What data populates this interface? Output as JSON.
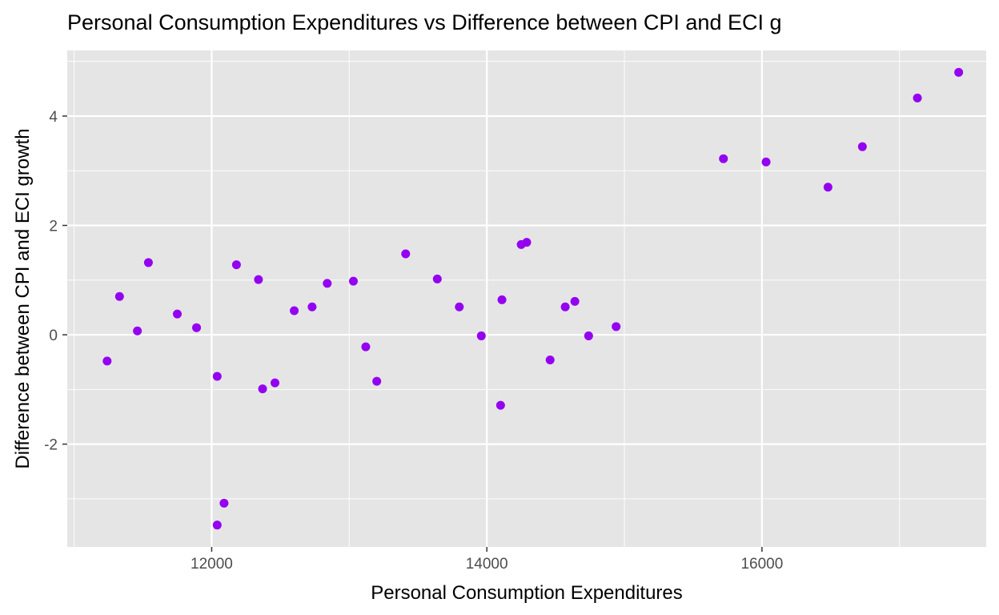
{
  "chart_data": {
    "type": "scatter",
    "title": "Personal Consumption Expenditures vs Difference between CPI and ECI g",
    "xlabel": "Personal Consumption Expenditures",
    "ylabel": "Difference between CPI and ECI growth",
    "xlim": [
      10950,
      17630
    ],
    "ylim": [
      -3.88,
      5.2
    ],
    "x_ticks": [
      12000,
      14000,
      16000
    ],
    "y_ticks": [
      -2,
      0,
      2,
      4
    ],
    "x_tick_labels": [
      "12000",
      "14000",
      "16000"
    ],
    "y_tick_labels": [
      "-2",
      "0",
      "2",
      "4"
    ],
    "grid": true,
    "legend": "none",
    "colors": {
      "panel": "#e5e5e5",
      "grid_major": "#ffffff",
      "point": "#9400f0",
      "tick_text": "#4d4d4d",
      "tick_mark": "#333333"
    },
    "points": [
      {
        "x": 11240,
        "y": -0.48
      },
      {
        "x": 11330,
        "y": 0.7
      },
      {
        "x": 11460,
        "y": 0.07
      },
      {
        "x": 11540,
        "y": 1.32
      },
      {
        "x": 11750,
        "y": 0.38
      },
      {
        "x": 11890,
        "y": 0.13
      },
      {
        "x": 12040,
        "y": -0.76
      },
      {
        "x": 12040,
        "y": -3.48
      },
      {
        "x": 12090,
        "y": -3.08
      },
      {
        "x": 12180,
        "y": 1.28
      },
      {
        "x": 12340,
        "y": 1.01
      },
      {
        "x": 12370,
        "y": -0.99
      },
      {
        "x": 12460,
        "y": -0.88
      },
      {
        "x": 12600,
        "y": 0.44
      },
      {
        "x": 12730,
        "y": 0.51
      },
      {
        "x": 12840,
        "y": 0.94
      },
      {
        "x": 13030,
        "y": 0.98
      },
      {
        "x": 13120,
        "y": -0.22
      },
      {
        "x": 13200,
        "y": -0.85
      },
      {
        "x": 13410,
        "y": 1.48
      },
      {
        "x": 13640,
        "y": 1.02
      },
      {
        "x": 13800,
        "y": 0.51
      },
      {
        "x": 13960,
        "y": -0.02
      },
      {
        "x": 14100,
        "y": -1.29
      },
      {
        "x": 14110,
        "y": 0.64
      },
      {
        "x": 14250,
        "y": 1.65
      },
      {
        "x": 14290,
        "y": 1.69
      },
      {
        "x": 14460,
        "y": -0.46
      },
      {
        "x": 14570,
        "y": 0.51
      },
      {
        "x": 14640,
        "y": 0.61
      },
      {
        "x": 14740,
        "y": -0.02
      },
      {
        "x": 14940,
        "y": 0.15
      },
      {
        "x": 15720,
        "y": 3.22
      },
      {
        "x": 16030,
        "y": 3.16
      },
      {
        "x": 16480,
        "y": 2.7
      },
      {
        "x": 16730,
        "y": 3.44
      },
      {
        "x": 17130,
        "y": 4.33
      },
      {
        "x": 17430,
        "y": 4.8
      }
    ]
  }
}
